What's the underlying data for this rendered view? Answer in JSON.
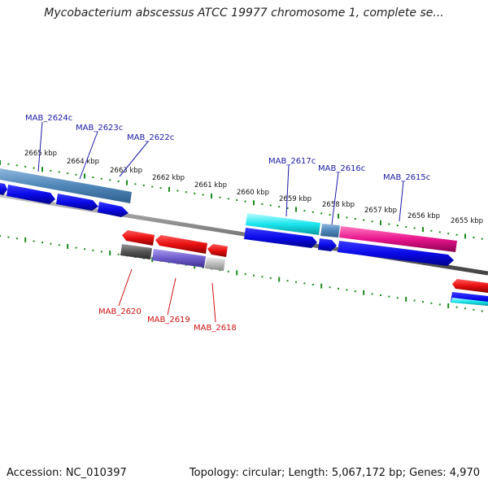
{
  "title": "Mycobacterium abscessus ATCC 19977 chromosome 1, complete se...",
  "accession": "Accession: NC_010397",
  "stats": "Topology: circular; Length: 5,067,172 bp; Genes: 4,970",
  "kbp_labels": [
    "2665 kbp",
    "2664 kbp",
    "2663 kbp",
    "2662 kbp",
    "2661 kbp",
    "2660 kbp",
    "2659 kbp",
    "2658 kbp",
    "2657 kbp",
    "2656 kbp",
    "2655 kbp"
  ],
  "top_genes": [
    "MAB_2624c",
    "MAB_2623c",
    "MAB_2622c",
    "MAB_2617c",
    "MAB_2616c",
    "MAB_2615c"
  ],
  "bottom_genes": [
    "MAB_2620",
    "MAB_2619",
    "MAB_2618"
  ],
  "colors": {
    "forward_label": "#1a1aa8",
    "reverse_label": "#cc1111",
    "cds_blue": "#0a0ae8",
    "cds_red": "#e81010",
    "steel_blue": "#4f86b8",
    "cyan": "#1be6ee",
    "magenta": "#e8148c",
    "purple": "#6e5ccc",
    "dark_gray": "#555555",
    "light_gray": "#bbbbbb",
    "backbone": "#7a7a7a",
    "tick_green": "#1a8a1a"
  }
}
